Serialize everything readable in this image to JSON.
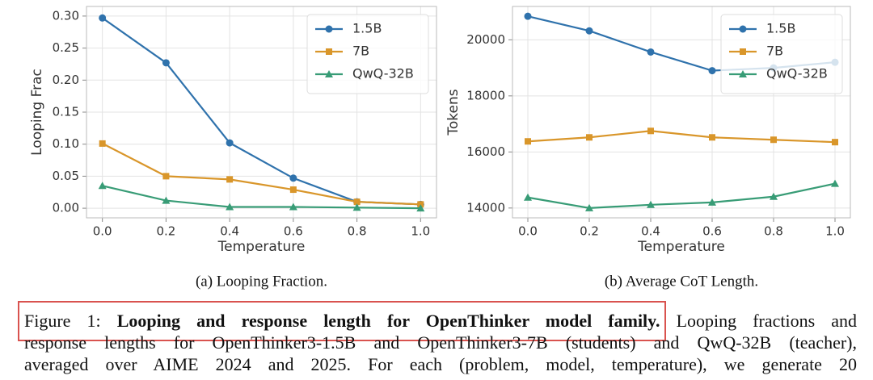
{
  "chart_data": [
    {
      "type": "line",
      "subcaption": "(a) Looping Fraction.",
      "xlabel": "Temperature",
      "ylabel": "Looping Frac",
      "x": [
        0,
        0.2,
        0.4,
        0.6,
        0.8,
        1.0
      ],
      "series": [
        {
          "name": "1.5B",
          "color": "#2f72ac",
          "marker": "o",
          "values": [
            0.297,
            0.227,
            0.102,
            0.047,
            0.01,
            0.006
          ]
        },
        {
          "name": "7B",
          "color": "#d9962a",
          "marker": "s",
          "values": [
            0.101,
            0.05,
            0.045,
            0.029,
            0.01,
            0.006
          ]
        },
        {
          "name": "QwQ-32B",
          "color": "#389c76",
          "marker": "^",
          "values": [
            0.035,
            0.012,
            0.002,
            0.002,
            0.001,
            0.0
          ]
        }
      ],
      "xlim": [
        -0.05,
        1.05
      ],
      "xticks": [
        {
          "value": 0,
          "label": "0.0"
        },
        {
          "value": 0.2,
          "label": "0.2"
        },
        {
          "value": 0.4,
          "label": "0.4"
        },
        {
          "value": 0.6,
          "label": "0.6"
        },
        {
          "value": 0.8,
          "label": "0.8"
        },
        {
          "value": 1,
          "label": "1.0"
        }
      ],
      "ylim": [
        -0.015,
        0.315
      ],
      "yticks": [
        {
          "value": 0,
          "label": "0.00"
        },
        {
          "value": 0.05,
          "label": "0.05"
        },
        {
          "value": 0.1,
          "label": "0.10"
        },
        {
          "value": 0.15,
          "label": "0.15"
        },
        {
          "value": 0.2,
          "label": "0.20"
        },
        {
          "value": 0.25,
          "label": "0.25"
        },
        {
          "value": 0.3,
          "label": "0.30"
        }
      ],
      "grid": true,
      "legend": "upper right"
    },
    {
      "type": "line",
      "subcaption": "(b) Average CoT Length.",
      "xlabel": "Temperature",
      "ylabel": "Tokens",
      "x": [
        0,
        0.2,
        0.4,
        0.6,
        0.8,
        1.0
      ],
      "series": [
        {
          "name": "1.5B",
          "color": "#2f72ac",
          "marker": "o",
          "values": [
            20840,
            20320,
            19565,
            18900,
            19000,
            19200
          ]
        },
        {
          "name": "7B",
          "color": "#d9962a",
          "marker": "s",
          "values": [
            16377,
            16520,
            16750,
            16520,
            16435,
            16350
          ]
        },
        {
          "name": "QwQ-32B",
          "color": "#389c76",
          "marker": "^",
          "values": [
            14377,
            14000,
            14116,
            14200,
            14406,
            14870
          ]
        }
      ],
      "xlim": [
        -0.05,
        1.05
      ],
      "xticks": [
        {
          "value": 0,
          "label": "0.0"
        },
        {
          "value": 0.2,
          "label": "0.2"
        },
        {
          "value": 0.4,
          "label": "0.4"
        },
        {
          "value": 0.6,
          "label": "0.6"
        },
        {
          "value": 0.8,
          "label": "0.8"
        },
        {
          "value": 1,
          "label": "1.0"
        }
      ],
      "ylim": [
        13650,
        21190
      ],
      "yticks": [
        14000,
        16000,
        18000,
        20000
      ],
      "grid": true,
      "legend": "upper right"
    }
  ],
  "caption": {
    "label": "Figure 1:",
    "title": "Looping and response length for OpenThinker model family.",
    "lines": [
      "Looping fractions and",
      "response lengths for OpenThinker3-1.5B and OpenThinker3-7B (students) and QwQ-32B (teacher),",
      "averaged over AIME 2024 and 2025.  For each (problem, model, temperature), we generate 20"
    ]
  }
}
